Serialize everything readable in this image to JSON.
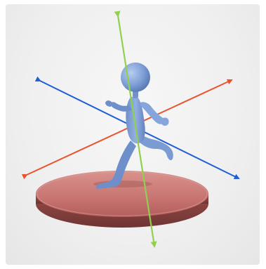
{
  "scene": {
    "watermark_text": "",
    "colors": {
      "background": "#efefef",
      "figure": "#7f9fd6",
      "figure_shade": "#5c7fbf",
      "platform_top": "#c87772",
      "platform_side": "#8f4b49",
      "x_axis": "#e9542e",
      "y_axis": "#1f5fd6",
      "z_axis": "#8fd14f"
    },
    "elements": {
      "platform": "3d-disc-platform",
      "figure": "running-stick-figure",
      "axes": [
        "orange-axis-arrow",
        "blue-axis-arrow",
        "green-axis-arrow"
      ]
    }
  }
}
